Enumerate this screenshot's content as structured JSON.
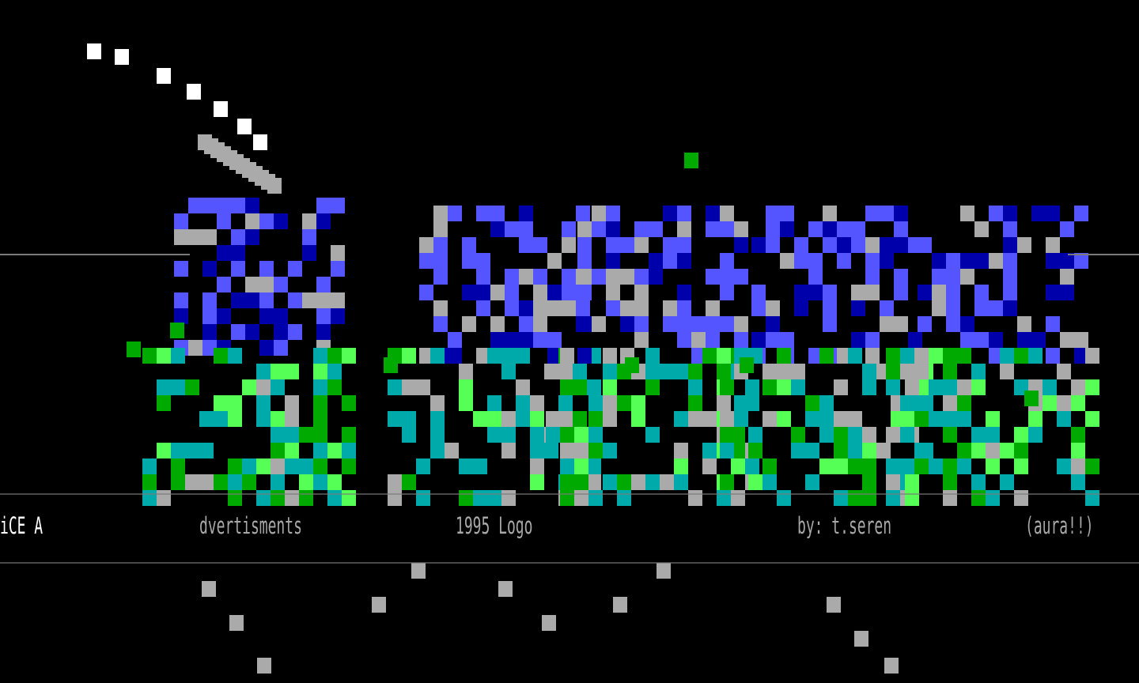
{
  "artwork": {
    "description_type": "ANSI art logo",
    "colors": {
      "blue": "#5555ff",
      "dark_blue": "#0000aa",
      "green": "#55ff55",
      "dark_green": "#00aa00",
      "teal": "#00aaaa",
      "gray": "#aaaaaa",
      "white": "#ffffff"
    }
  },
  "credits": {
    "group": "iCE A",
    "word": "dvertisments",
    "year_label": "1995 Logo",
    "author": "by: t.seren",
    "tag": "(aura!!)"
  }
}
